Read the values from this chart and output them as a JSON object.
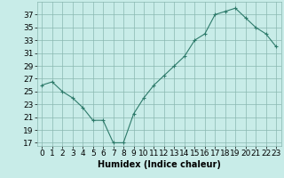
{
  "x": [
    0,
    1,
    2,
    3,
    4,
    5,
    6,
    7,
    8,
    9,
    10,
    11,
    12,
    13,
    14,
    15,
    16,
    17,
    18,
    19,
    20,
    21,
    22,
    23
  ],
  "y": [
    26,
    26.5,
    25,
    24,
    22.5,
    20.5,
    20.5,
    17,
    17,
    21.5,
    24,
    26,
    27.5,
    29,
    30.5,
    33,
    34,
    37,
    37.5,
    38,
    36.5,
    35,
    34,
    32
  ],
  "line_color": "#2d7a6a",
  "marker": "+",
  "bg_color": "#c8ece8",
  "grid_color": "#8ab8b0",
  "xlabel": "Humidex (Indice chaleur)",
  "ylabel_ticks": [
    17,
    19,
    21,
    23,
    25,
    27,
    29,
    31,
    33,
    35,
    37
  ],
  "ylim": [
    16.5,
    39
  ],
  "xlim": [
    -0.5,
    23.5
  ],
  "xlabel_fontsize": 7,
  "tick_fontsize": 6.5
}
